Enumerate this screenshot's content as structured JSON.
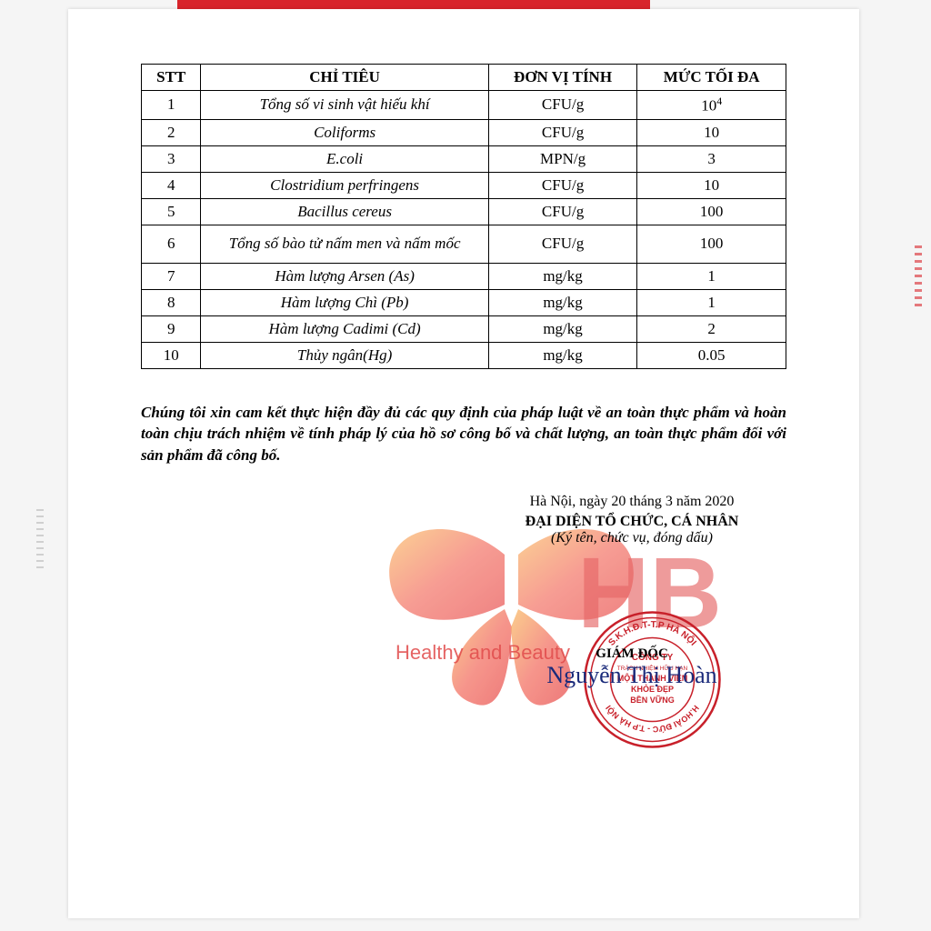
{
  "table": {
    "headers": {
      "stt": "STT",
      "chitieu": "CHỈ TIÊU",
      "donvi": "ĐƠN VỊ TÍNH",
      "max": "MỨC TỐI ĐA"
    },
    "rows": [
      {
        "stt": "1",
        "chitieu": "Tổng số vi sinh vật hiếu khí",
        "donvi": "CFU/g",
        "max_html": "10<span class='sup'>4</span>"
      },
      {
        "stt": "2",
        "chitieu": "Coliforms",
        "donvi": "CFU/g",
        "max": "10"
      },
      {
        "stt": "3",
        "chitieu": "E.coli",
        "donvi": "MPN/g",
        "max": "3"
      },
      {
        "stt": "4",
        "chitieu": "Clostridium perfringens",
        "donvi": "CFU/g",
        "max": "10"
      },
      {
        "stt": "5",
        "chitieu": "Bacillus cereus",
        "donvi": "CFU/g",
        "max": "100"
      },
      {
        "stt": "6",
        "chitieu": "Tổng số bào tử nấm men và nấm mốc",
        "donvi": "CFU/g",
        "max": "100",
        "tall": true
      },
      {
        "stt": "7",
        "chitieu": "Hàm lượng Arsen (As)",
        "donvi": "mg/kg",
        "max": "1"
      },
      {
        "stt": "8",
        "chitieu": "Hàm lượng Chì (Pb)",
        "donvi": "mg/kg",
        "max": "1"
      },
      {
        "stt": "9",
        "chitieu": "Hàm lượng  Cadimi (Cd)",
        "donvi": "mg/kg",
        "max": "2"
      },
      {
        "stt": "10",
        "chitieu": "Thủy ngân(Hg)",
        "donvi": "mg/kg",
        "max": "0.05"
      }
    ]
  },
  "declaration": "Chúng tôi xin cam kết thực hiện đầy đủ các quy định của pháp luật về an toàn thực phẩm và hoàn toàn chịu trách nhiệm về tính pháp lý của hồ sơ công bố và chất lượng, an toàn thực phẩm đối với sản phẩm đã công bố.",
  "sign": {
    "date": "Hà Nội, ngày 20 tháng  3 năm 2020",
    "role1": "ĐẠI DIỆN TỔ CHỨC, CÁ NHÂN",
    "role2": "(Ký tên, chức vụ, đóng dấu)",
    "giamdoc": "GIÁM ĐỐC",
    "name": "Nguyễn Thị Hoàn"
  },
  "stamp": {
    "outer_text_top": "CÔNG TY",
    "line1": "TRÁCH NHIỆM HỮU HẠN",
    "line2": "MỘT THÀNH VIÊN",
    "line3": "KHỎE ĐẸP",
    "line4": "BỀN VỮNG",
    "outer_text_bottom": "H.HOÀI ĐỨC - T.P HÀ NỘI",
    "color": "#c8202a"
  },
  "watermark": {
    "hb": "HB",
    "tagline": "Healthy and Beauty",
    "color1": "#f15a4a",
    "color2": "#e32e2e"
  },
  "colors": {
    "border_red": "#d8242b",
    "text": "#000000",
    "signature_blue": "#1a2a7a"
  }
}
